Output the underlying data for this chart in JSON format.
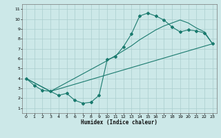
{
  "xlabel": "Humidex (Indice chaleur)",
  "xlim": [
    -0.5,
    23.5
  ],
  "ylim": [
    0.5,
    11.5
  ],
  "xticks": [
    0,
    1,
    2,
    3,
    4,
    5,
    6,
    7,
    8,
    9,
    10,
    11,
    12,
    13,
    14,
    15,
    16,
    17,
    18,
    19,
    20,
    21,
    22,
    23
  ],
  "yticks": [
    1,
    2,
    3,
    4,
    5,
    6,
    7,
    8,
    9,
    10,
    11
  ],
  "background_color": "#cce8e8",
  "line_color": "#1a7a6e",
  "grid_color": "#aacece",
  "line1_x": [
    0,
    1,
    2,
    3,
    4,
    5,
    6,
    7,
    8,
    9,
    10,
    11,
    12,
    13,
    14,
    15,
    16,
    17,
    18,
    19,
    20,
    21,
    22,
    23
  ],
  "line1_y": [
    4.0,
    3.3,
    2.8,
    2.7,
    2.3,
    2.5,
    1.8,
    1.5,
    1.6,
    2.3,
    5.9,
    6.2,
    7.2,
    8.5,
    10.3,
    10.6,
    10.3,
    9.9,
    9.2,
    8.7,
    8.9,
    8.8,
    8.6,
    7.5
  ],
  "line2_x": [
    0,
    3,
    10,
    11,
    12,
    13,
    14,
    15,
    16,
    17,
    18,
    19,
    20,
    21,
    22,
    23
  ],
  "line2_y": [
    4.0,
    2.7,
    5.8,
    6.3,
    6.8,
    7.3,
    7.9,
    8.4,
    8.9,
    9.3,
    9.6,
    9.9,
    9.6,
    9.1,
    8.7,
    7.5
  ],
  "line3_x": [
    0,
    3,
    23
  ],
  "line3_y": [
    4.0,
    2.7,
    7.5
  ]
}
